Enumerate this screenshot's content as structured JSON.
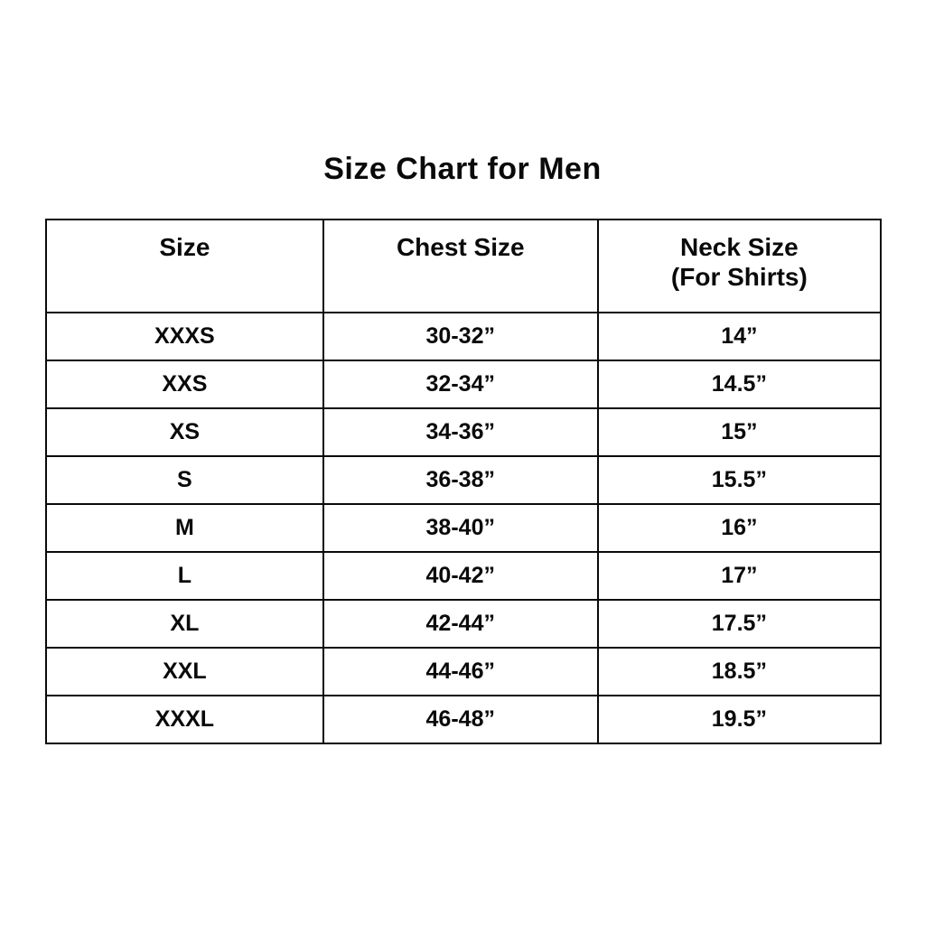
{
  "page": {
    "background": "#ffffff",
    "text_color": "#0a0a0a",
    "border_color": "#0a0a0a"
  },
  "title": "Size Chart for Men",
  "table": {
    "columns": [
      {
        "label": "Size",
        "note": ""
      },
      {
        "label": "Chest Size",
        "note": ""
      },
      {
        "label": "Neck Size",
        "note": "(For Shirts)"
      }
    ],
    "rows": [
      {
        "size": "XXXS",
        "chest": "30-32”",
        "neck": "14”"
      },
      {
        "size": "XXS",
        "chest": "32-34”",
        "neck": "14.5”"
      },
      {
        "size": "XS",
        "chest": "34-36”",
        "neck": "15”"
      },
      {
        "size": "S",
        "chest": "36-38”",
        "neck": "15.5”"
      },
      {
        "size": "M",
        "chest": "38-40”",
        "neck": "16”"
      },
      {
        "size": "L",
        "chest": "40-42”",
        "neck": "17”"
      },
      {
        "size": "XL",
        "chest": "42-44”",
        "neck": "17.5”"
      },
      {
        "size": "XXL",
        "chest": "44-46”",
        "neck": "18.5”"
      },
      {
        "size": "XXXL",
        "chest": "46-48”",
        "neck": "19.5”"
      }
    ]
  },
  "chart_data": {
    "type": "table",
    "title": "Size Chart for Men",
    "columns": [
      "Size",
      "Chest Size",
      "Neck Size (For Shirts)"
    ],
    "rows": [
      [
        "XXXS",
        "30-32”",
        "14”"
      ],
      [
        "XXS",
        "32-34”",
        "14.5”"
      ],
      [
        "XS",
        "34-36”",
        "15”"
      ],
      [
        "S",
        "36-38”",
        "15.5”"
      ],
      [
        "M",
        "38-40”",
        "16”"
      ],
      [
        "L",
        "40-42”",
        "17”"
      ],
      [
        "XL",
        "42-44”",
        "17.5”"
      ],
      [
        "XXL",
        "44-46”",
        "18.5”"
      ],
      [
        "XXXL",
        "46-48”",
        "19.5”"
      ]
    ],
    "layout": {
      "grid": true,
      "header_rows": 1,
      "text_align": "center",
      "font_weight": "bold"
    }
  }
}
